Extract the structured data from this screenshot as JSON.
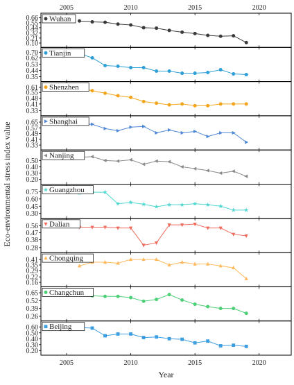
{
  "chart_data": {
    "type": "line",
    "xlabel": "Year",
    "ylabel": "Eco-environmental stress index value",
    "x_ticks": [
      "2005",
      "2010",
      "2015",
      "2020"
    ],
    "xlim": [
      2003,
      2022.5
    ],
    "x": [
      2006,
      2007,
      2008,
      2009,
      2010,
      2011,
      2012,
      2013,
      2014,
      2015,
      2016,
      2017,
      2018,
      2019
    ],
    "panels": [
      {
        "name": "Wuhan",
        "color": "#3a3a3a",
        "marker": "circle",
        "yticks": [
          "0.10",
          "0.21",
          "0.32",
          "0.44",
          "0.55",
          "0.66"
        ],
        "ylim": [
          0.08,
          0.67
        ],
        "values": [
          0.59,
          0.57,
          0.56,
          0.52,
          0.5,
          0.44,
          0.43,
          0.38,
          0.34,
          0.31,
          0.27,
          0.25,
          0.26,
          0.11
        ]
      },
      {
        "name": "Tianjin",
        "color": "#2f9fd6",
        "marker": "circle",
        "yticks": [
          "0.35",
          "0.44",
          "0.53",
          "0.62",
          "0.70"
        ],
        "ylim": [
          0.33,
          0.71
        ],
        "values": [
          0.68,
          0.62,
          0.51,
          0.5,
          0.48,
          0.48,
          0.43,
          0.43,
          0.4,
          0.4,
          0.41,
          0.45,
          0.39,
          0.38
        ]
      },
      {
        "name": "Shenzhen",
        "color": "#f2a51c",
        "marker": "circle",
        "yticks": [
          "0.33",
          "0.41",
          "0.48",
          "0.55",
          "0.61"
        ],
        "ylim": [
          0.31,
          0.63
        ],
        "values": [
          0.6,
          0.57,
          0.54,
          0.51,
          0.49,
          0.44,
          0.42,
          0.4,
          0.41,
          0.39,
          0.39,
          0.41,
          0.41,
          0.41
        ]
      },
      {
        "name": "Shanghai",
        "color": "#4f88d6",
        "marker": "triangle-right",
        "yticks": [
          "0.33",
          "0.41",
          "0.49",
          "0.57",
          "0.65"
        ],
        "ylim": [
          0.31,
          0.68
        ],
        "values": [
          0.62,
          0.62,
          0.56,
          0.53,
          0.58,
          0.59,
          0.5,
          0.54,
          0.5,
          0.52,
          0.45,
          0.5,
          0.5,
          0.37
        ]
      },
      {
        "name": "Nanjing",
        "color": "#8a8a8a",
        "marker": "triangle-left",
        "yticks": [
          "0.20",
          "0.30",
          "0.40",
          "0.50"
        ],
        "ylim": [
          0.18,
          0.6
        ],
        "values": [
          0.55,
          0.56,
          0.5,
          0.49,
          0.51,
          0.44,
          0.49,
          0.48,
          0.4,
          0.37,
          0.34,
          0.3,
          0.33,
          0.25
        ]
      },
      {
        "name": "Guangzhou",
        "color": "#50d8d0",
        "marker": "star",
        "yticks": [
          "0.30",
          "0.45",
          "0.60",
          "0.75"
        ],
        "ylim": [
          0.27,
          0.82
        ],
        "values": [
          0.72,
          0.74,
          0.74,
          0.5,
          0.53,
          0.49,
          0.44,
          0.48,
          0.48,
          0.5,
          0.48,
          0.45,
          0.37,
          0.37
        ]
      },
      {
        "name": "Dalian",
        "color": "#ee6b5e",
        "marker": "triangle-down",
        "yticks": [
          "0.28",
          "0.38",
          "0.47",
          "0.56"
        ],
        "ylim": [
          0.26,
          0.6
        ],
        "values": [
          0.54,
          0.54,
          0.54,
          0.53,
          0.53,
          0.31,
          0.34,
          0.57,
          0.57,
          0.58,
          0.53,
          0.53,
          0.45,
          0.43
        ]
      },
      {
        "name": "Chongqing",
        "color": "#ffb95c",
        "marker": "triangle-up",
        "yticks": [
          "0.16",
          "0.22",
          "0.29",
          "0.35",
          "0.41"
        ],
        "ylim": [
          0.15,
          0.44
        ],
        "values": [
          0.34,
          0.38,
          0.38,
          0.37,
          0.41,
          0.41,
          0.41,
          0.35,
          0.38,
          0.36,
          0.36,
          0.34,
          0.32,
          0.2
        ]
      },
      {
        "name": "Changchun",
        "color": "#4ccf76",
        "marker": "circle",
        "yticks": [
          "0.26",
          "0.39",
          "0.52",
          "0.65"
        ],
        "ylim": [
          0.24,
          0.68
        ],
        "values": [
          0.66,
          0.6,
          0.59,
          0.59,
          0.57,
          0.51,
          0.54,
          0.62,
          0.53,
          0.46,
          0.42,
          0.39,
          0.39,
          0.31
        ]
      },
      {
        "name": "Beijing",
        "color": "#3c9ee0",
        "marker": "square",
        "yticks": [
          "0.20",
          "0.30",
          "0.40",
          "0.50",
          "0.60"
        ],
        "ylim": [
          0.18,
          0.63
        ],
        "values": [
          0.59,
          0.58,
          0.45,
          0.48,
          0.48,
          0.42,
          0.43,
          0.4,
          0.39,
          0.33,
          0.36,
          0.28,
          0.29,
          0.27
        ]
      }
    ]
  }
}
